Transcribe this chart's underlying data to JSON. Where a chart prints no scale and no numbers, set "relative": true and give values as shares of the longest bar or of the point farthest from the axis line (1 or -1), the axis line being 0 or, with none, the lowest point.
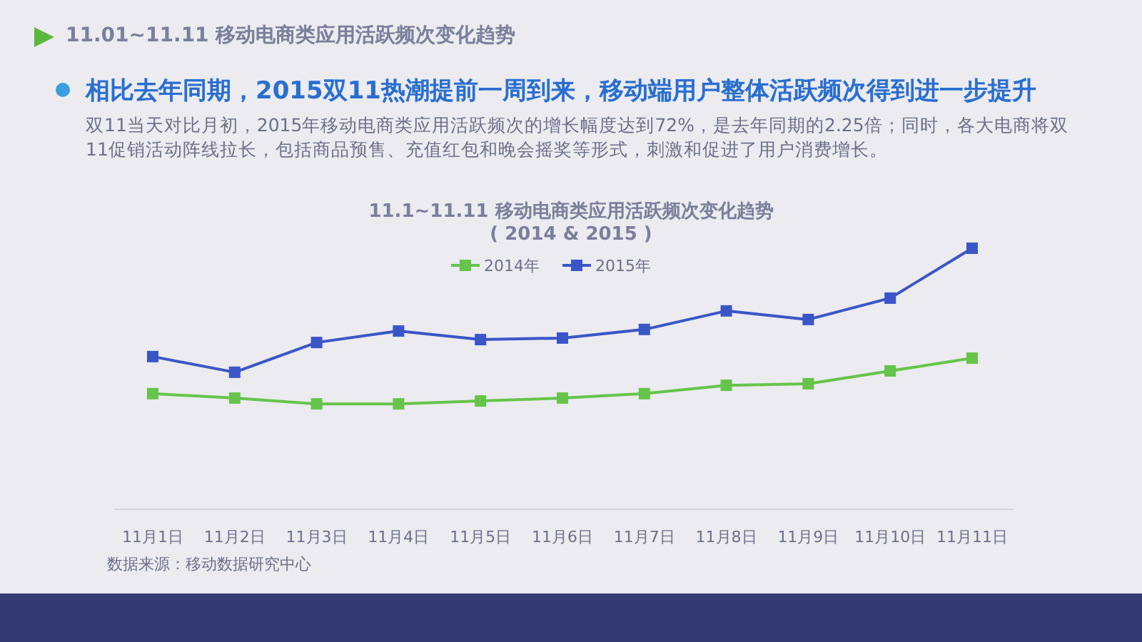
{
  "chart_data": {
    "type": "line",
    "title": "11.1~11.11 移动电商类应用活跃频次变化趋势",
    "subtitle": "( 2014 & 2015 )",
    "annotations": [
      "11.01~11.11 移动电商类应用活跃频次变化趋势",
      "相比去年同期，2015双11热潮提前一周到来，移动端用户整体活跃频次得到进一步提升",
      "双11当天对比月初，2015年移动电商类应用活跃频次的增长幅度达到72%，是去年同期的2.25倍；同时，各大电商将双11促销活动阵线拉长，包括商品预售、充值红包和晚会摇奖等形式，刺激和促进了用户消费增长。",
      "数据来源：移动数据研究中心"
    ],
    "categories": [
      "11月1日",
      "11月2日",
      "11月3日",
      "11月4日",
      "11月5日",
      "11月6日",
      "11月7日",
      "11月8日",
      "11月9日",
      "11月10日",
      "11月11日"
    ],
    "relative": true,
    "legend": "top",
    "marker": "square",
    "grid": false,
    "series": [
      {
        "name": "2014年",
        "color": "#66c44a",
        "values": [
          0.443,
          0.426,
          0.404,
          0.404,
          0.415,
          0.426,
          0.443,
          0.475,
          0.481,
          0.53,
          0.579
        ]
      },
      {
        "name": "2015年",
        "color": "#3a56c6",
        "values": [
          0.585,
          0.525,
          0.639,
          0.683,
          0.65,
          0.656,
          0.689,
          0.76,
          0.727,
          0.809,
          1
        ]
      }
    ]
  }
}
